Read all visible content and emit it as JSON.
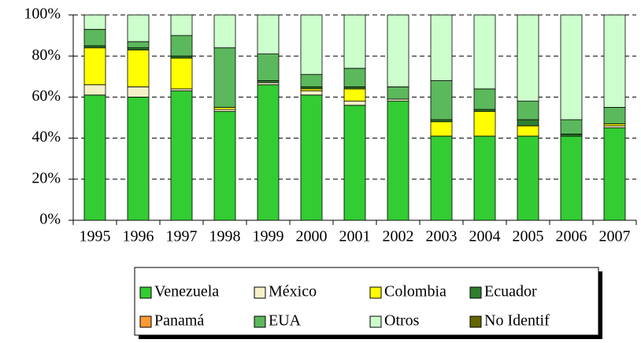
{
  "chart_data": {
    "type": "stacked_bar",
    "categories": [
      "1995",
      "1996",
      "1997",
      "1998",
      "1999",
      "2000",
      "2001",
      "2002",
      "2003",
      "2004",
      "2005",
      "2006",
      "2007"
    ],
    "series": [
      {
        "name": "Venezuela",
        "color": "#33cc33",
        "values": [
          61,
          60,
          63,
          53,
          66,
          61,
          56,
          58,
          41,
          41,
          41,
          41,
          45
        ]
      },
      {
        "name": "México",
        "color": "#f5f0c8",
        "values": [
          5,
          5,
          1,
          1,
          1,
          2,
          2,
          1,
          0,
          0,
          0,
          0,
          1
        ]
      },
      {
        "name": "Colombia",
        "color": "#ffff00",
        "values": [
          18,
          18,
          15,
          1,
          0,
          1,
          6,
          0,
          7,
          12,
          5,
          0,
          1
        ]
      },
      {
        "name": "Ecuador",
        "color": "#2f7f2f",
        "values": [
          1,
          1,
          1,
          0,
          1,
          1,
          1,
          0,
          1,
          1,
          3,
          1,
          0
        ]
      },
      {
        "name": "Panamá",
        "color": "#ff9933",
        "values": [
          0,
          0,
          0,
          0,
          0,
          0,
          0,
          0,
          0,
          0,
          0,
          0,
          0
        ]
      },
      {
        "name": "EUA",
        "color": "#5cb85c",
        "values": [
          8,
          3,
          10,
          29,
          13,
          6,
          9,
          6,
          19,
          10,
          9,
          7,
          8
        ]
      },
      {
        "name": "Otros",
        "color": "#ccffcc",
        "values": [
          7,
          13,
          10,
          16,
          19,
          29,
          26,
          35,
          32,
          36,
          42,
          51,
          45
        ]
      },
      {
        "name": "No Identif",
        "color": "#666600",
        "values": [
          0,
          0,
          0,
          0,
          0,
          0,
          0,
          0,
          0,
          0,
          0,
          0,
          0
        ]
      }
    ],
    "ylim": [
      0,
      100
    ],
    "yticks": [
      {
        "value": 0,
        "label": "0%"
      },
      {
        "value": 20,
        "label": "20%"
      },
      {
        "value": 40,
        "label": "40%"
      },
      {
        "value": 60,
        "label": "60%"
      },
      {
        "value": 80,
        "label": "80%"
      },
      {
        "value": 100,
        "label": "100%"
      }
    ],
    "grid": true,
    "legend": "bottom"
  }
}
